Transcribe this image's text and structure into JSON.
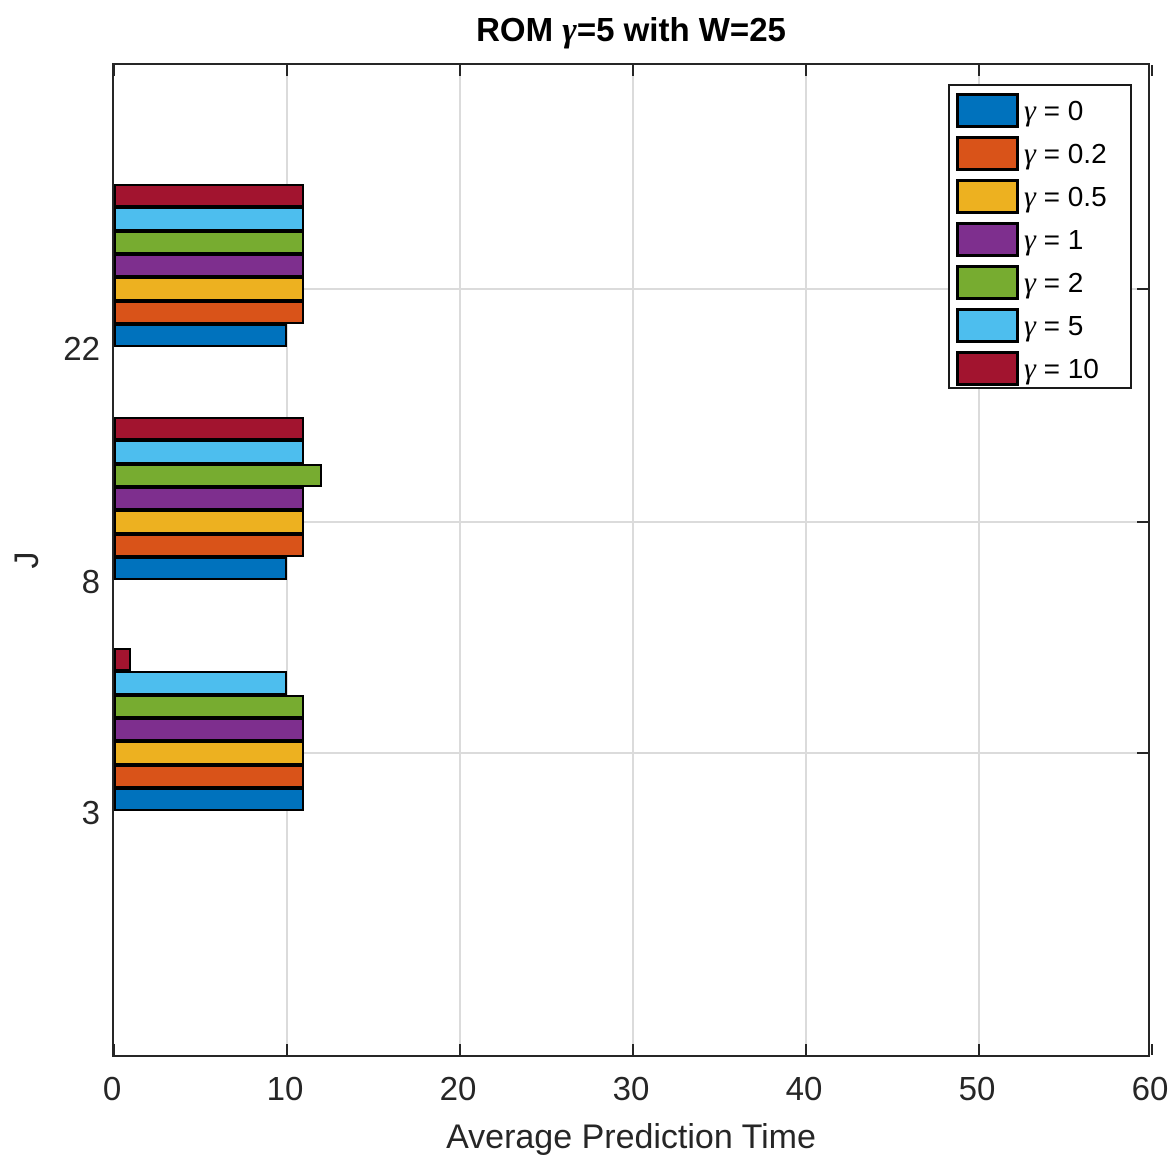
{
  "figure": {
    "title": {
      "pre": "ROM ",
      "gamma": "γ",
      "post": "=5 with W=25"
    },
    "xlabel": "Average Prediction Time",
    "ylabel": "J"
  },
  "axes": {
    "xtick_labels": [
      "0",
      "10",
      "20",
      "30",
      "40",
      "50",
      "60"
    ],
    "ytick_labels": [
      "3",
      "8",
      "22"
    ],
    "colors": {
      "axis": "#262626",
      "grid": "#DBDBDB",
      "tick": "#262626",
      "tick_label": "#262626",
      "bar_border": "#000000",
      "background": "#FFFFFF"
    }
  },
  "chart_data": {
    "type": "bar",
    "orientation": "horizontal",
    "grouped": true,
    "title": "ROM γ=5 with W=25",
    "xlabel": "Average Prediction Time",
    "ylabel": "J",
    "xlim": [
      0,
      60
    ],
    "xticks": [
      0,
      10,
      20,
      30,
      40,
      50,
      60
    ],
    "categories": [
      "3",
      "8",
      "22"
    ],
    "grid": true,
    "legend_position": "upper-right",
    "series": [
      {
        "name": "γ = 0",
        "symbol": "γ",
        "rest": " = 0",
        "color": "#0072BD",
        "values": [
          11,
          10,
          10
        ]
      },
      {
        "name": "γ = 0.2",
        "symbol": "γ",
        "rest": " = 0.2",
        "color": "#D95319",
        "values": [
          11,
          11,
          11
        ]
      },
      {
        "name": "γ = 0.5",
        "symbol": "γ",
        "rest": " = 0.5",
        "color": "#EDB120",
        "values": [
          11,
          11,
          11
        ]
      },
      {
        "name": "γ = 1",
        "symbol": "γ",
        "rest": " = 1",
        "color": "#7E2F8E",
        "values": [
          11,
          11,
          11
        ]
      },
      {
        "name": "γ = 2",
        "symbol": "γ",
        "rest": " = 2",
        "color": "#77AC30",
        "values": [
          11,
          12,
          11
        ]
      },
      {
        "name": "γ = 5",
        "symbol": "γ",
        "rest": " = 5",
        "color": "#4DBEEE",
        "values": [
          10,
          11,
          11
        ]
      },
      {
        "name": "γ = 10",
        "symbol": "γ",
        "rest": " = 10",
        "color": "#A2142F",
        "values": [
          1,
          11,
          11
        ]
      }
    ]
  }
}
